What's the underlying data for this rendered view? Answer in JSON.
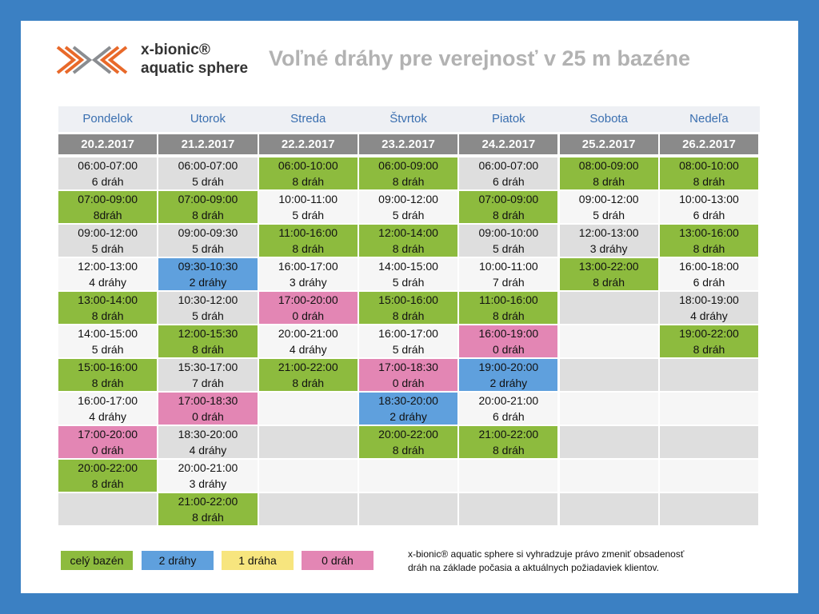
{
  "header": {
    "brand_line1": "x-bionic®",
    "brand_line2": "aquatic sphere",
    "title": "Voľné dráhy pre verejnosť v 25 m bazéne"
  },
  "table": {
    "rows_count": 11,
    "columns": [
      {
        "day": "Pondelok",
        "date": "20.2.2017",
        "slots": [
          {
            "time": "06:00-07:00",
            "lanes": "6 dráh"
          },
          {
            "time": "07:00-09:00",
            "lanes": "8dráh",
            "color": "#8dbb3e"
          },
          {
            "time": "09:00-12:00",
            "lanes": "5 dráh"
          },
          {
            "time": "12:00-13:00",
            "lanes": "4 dráhy"
          },
          {
            "time": "13:00-14:00",
            "lanes": "8 dráh",
            "color": "#8dbb3e"
          },
          {
            "time": "14:00-15:00",
            "lanes": "5 dráh"
          },
          {
            "time": "15:00-16:00",
            "lanes": "8 dráh",
            "color": "#8dbb3e"
          },
          {
            "time": "16:00-17:00",
            "lanes": "4 dráhy"
          },
          {
            "time": "17:00-20:00",
            "lanes": "0 dráh",
            "color": "#e386b4"
          },
          {
            "time": "20:00-22:00",
            "lanes": "8 dráh",
            "color": "#8dbb3e"
          }
        ]
      },
      {
        "day": "Utorok",
        "date": "21.2.2017",
        "slots": [
          {
            "time": "06:00-07:00",
            "lanes": "5 dráh"
          },
          {
            "time": "07:00-09:00",
            "lanes": "8 dráh",
            "color": "#8dbb3e"
          },
          {
            "time": "09:00-09:30",
            "lanes": "5 dráh"
          },
          {
            "time": "09:30-10:30",
            "lanes": "2 dráhy",
            "color": "#5fa0dd"
          },
          {
            "time": "10:30-12:00",
            "lanes": "5 dráh"
          },
          {
            "time": "12:00-15:30",
            "lanes": "8 dráh",
            "color": "#8dbb3e"
          },
          {
            "time": "15:30-17:00",
            "lanes": "7 dráh"
          },
          {
            "time": "17:00-18:30",
            "lanes": "0 dráh",
            "color": "#e386b4"
          },
          {
            "time": "18:30-20:00",
            "lanes": "4 dráhy"
          },
          {
            "time": "20:00-21:00",
            "lanes": "3 dráhy"
          },
          {
            "time": "21:00-22:00",
            "lanes": "8 dráh",
            "color": "#8dbb3e"
          }
        ]
      },
      {
        "day": "Streda",
        "date": "22.2.2017",
        "slots": [
          {
            "time": "06:00-10:00",
            "lanes": "8 dráh",
            "color": "#8dbb3e"
          },
          {
            "time": "10:00-11:00",
            "lanes": "5 dráh"
          },
          {
            "time": "11:00-16:00",
            "lanes": "8 dráh",
            "color": "#8dbb3e"
          },
          {
            "time": "16:00-17:00",
            "lanes": "3 dráhy"
          },
          {
            "time": "17:00-20:00",
            "lanes": "0 dráh",
            "color": "#e386b4"
          },
          {
            "time": "20:00-21:00",
            "lanes": "4 dráhy"
          },
          {
            "time": "21:00-22:00",
            "lanes": "8 dráh",
            "color": "#8dbb3e"
          }
        ]
      },
      {
        "day": "Štvrtok",
        "date": "23.2.2017",
        "slots": [
          {
            "time": "06:00-09:00",
            "lanes": "8 dráh",
            "color": "#8dbb3e"
          },
          {
            "time": "09:00-12:00",
            "lanes": "5 dráh"
          },
          {
            "time": "12:00-14:00",
            "lanes": "8 dráh",
            "color": "#8dbb3e"
          },
          {
            "time": "14:00-15:00",
            "lanes": "5 dráh"
          },
          {
            "time": "15:00-16:00",
            "lanes": "8 dráh",
            "color": "#8dbb3e"
          },
          {
            "time": "16:00-17:00",
            "lanes": "5 dráh"
          },
          {
            "time": "17:00-18:30",
            "lanes": "0 dráh",
            "color": "#e386b4"
          },
          {
            "time": "18:30-20:00",
            "lanes": "2 dráhy",
            "color": "#5fa0dd"
          },
          {
            "time": "20:00-22:00",
            "lanes": "8 dráh",
            "color": "#8dbb3e"
          }
        ]
      },
      {
        "day": "Piatok",
        "date": "24.2.2017",
        "slots": [
          {
            "time": "06:00-07:00",
            "lanes": "6 dráh"
          },
          {
            "time": "07:00-09:00",
            "lanes": "8 dráh",
            "color": "#8dbb3e"
          },
          {
            "time": "09:00-10:00",
            "lanes": "5 dráh"
          },
          {
            "time": "10:00-11:00",
            "lanes": "7 dráh"
          },
          {
            "time": "11:00-16:00",
            "lanes": "8 dráh",
            "color": "#8dbb3e"
          },
          {
            "time": "16:00-19:00",
            "lanes": "0 dráh",
            "color": "#e386b4"
          },
          {
            "time": "19:00-20:00",
            "lanes": "2 dráhy",
            "color": "#5fa0dd"
          },
          {
            "time": "20:00-21:00",
            "lanes": "6 dráh"
          },
          {
            "time": "21:00-22:00",
            "lanes": "8 dráh",
            "color": "#8dbb3e"
          }
        ]
      },
      {
        "day": "Sobota",
        "date": "25.2.2017",
        "slots": [
          {
            "time": "08:00-09:00",
            "lanes": "8 dráh",
            "color": "#8dbb3e"
          },
          {
            "time": "09:00-12:00",
            "lanes": "5 dráh"
          },
          {
            "time": "12:00-13:00",
            "lanes": "3 dráhy"
          },
          {
            "time": "13:00-22:00",
            "lanes": "8 dráh",
            "color": "#8dbb3e"
          }
        ]
      },
      {
        "day": "Nedeľa",
        "date": "26.2.2017",
        "slots": [
          {
            "time": "08:00-10:00",
            "lanes": "8 dráh",
            "color": "#8dbb3e"
          },
          {
            "time": "10:00-13:00",
            "lanes": "6 dráh"
          },
          {
            "time": "13:00-16:00",
            "lanes": "8 dráh",
            "color": "#8dbb3e"
          },
          {
            "time": "16:00-18:00",
            "lanes": "6 dráh"
          },
          {
            "time": "18:00-19:00",
            "lanes": "4 dráhy"
          },
          {
            "time": "19:00-22:00",
            "lanes": "8 dráh",
            "color": "#8dbb3e"
          }
        ]
      }
    ]
  },
  "legend": [
    {
      "label": "celý bazén",
      "color": "#8dbb3e"
    },
    {
      "label": "2 dráhy",
      "color": "#5fa0dd"
    },
    {
      "label": "1 dráha",
      "color": "#f7e57e"
    },
    {
      "label": "0 dráh",
      "color": "#e386b4"
    }
  ],
  "note": {
    "line1": "x-bionic® aquatic sphere si vyhradzuje právo zmeniť obsadenosť",
    "line2": "dráh na základe počasia a aktuálnych požiadaviek klientov."
  }
}
